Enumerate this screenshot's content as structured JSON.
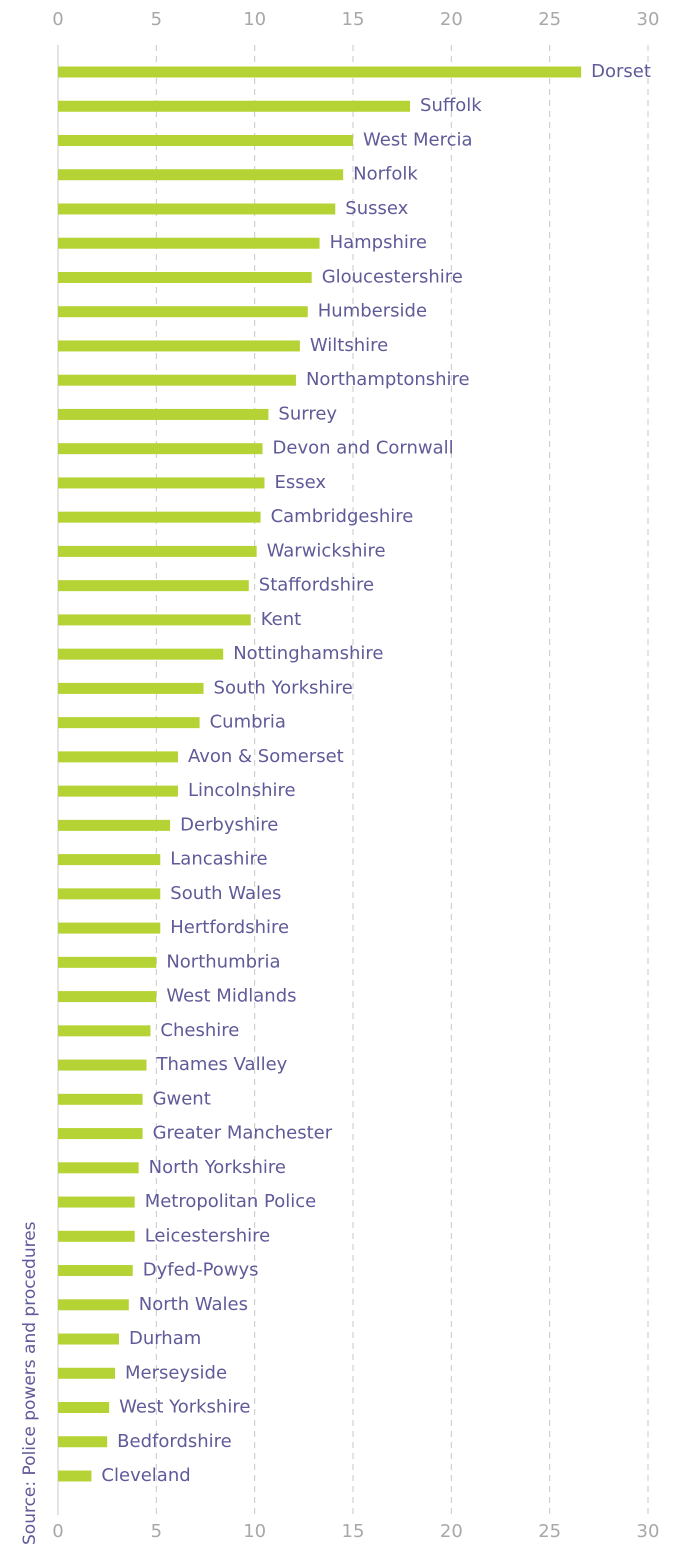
{
  "chart_data": {
    "type": "barh",
    "source": "Source: Police powers and procedures",
    "categories": [
      "Dorset",
      "Suffolk",
      "West Mercia",
      "Norfolk",
      "Sussex",
      "Hampshire",
      "Gloucestershire",
      "Humberside",
      "Wiltshire",
      "Northamptonshire",
      "Surrey",
      "Devon and Cornwall",
      "Essex",
      "Cambridgeshire",
      "Warwickshire",
      "Staffordshire",
      "Kent",
      "Nottinghamshire",
      "South Yorkshire",
      "Cumbria",
      "Avon & Somerset",
      "Lincolnshire",
      "Derbyshire",
      "Lancashire",
      "South Wales",
      "Hertfordshire",
      "Northumbria",
      "West Midlands",
      "Cheshire",
      "Thames Valley",
      "Gwent",
      "Greater Manchester",
      "North Yorkshire",
      "Metropolitan Police",
      "Leicestershire",
      "Dyfed-Powys",
      "North Wales",
      "Durham",
      "Merseyside",
      "West Yorkshire",
      "Bedfordshire",
      "Cleveland"
    ],
    "values": [
      26.6,
      17.9,
      15.0,
      14.5,
      14.1,
      13.3,
      12.9,
      12.7,
      12.3,
      12.1,
      10.7,
      10.4,
      10.5,
      10.3,
      10.1,
      9.7,
      9.8,
      8.4,
      7.4,
      7.2,
      6.1,
      6.1,
      5.7,
      5.2,
      5.2,
      5.2,
      5.0,
      5.0,
      4.7,
      4.5,
      4.3,
      4.3,
      4.1,
      3.9,
      3.9,
      3.8,
      3.6,
      3.1,
      2.9,
      2.6,
      2.5,
      1.7
    ],
    "color": "#b5d334",
    "xlim": [
      0,
      30
    ],
    "xticks": [
      0,
      5,
      10,
      15,
      20,
      25,
      30
    ],
    "grid": true
  }
}
